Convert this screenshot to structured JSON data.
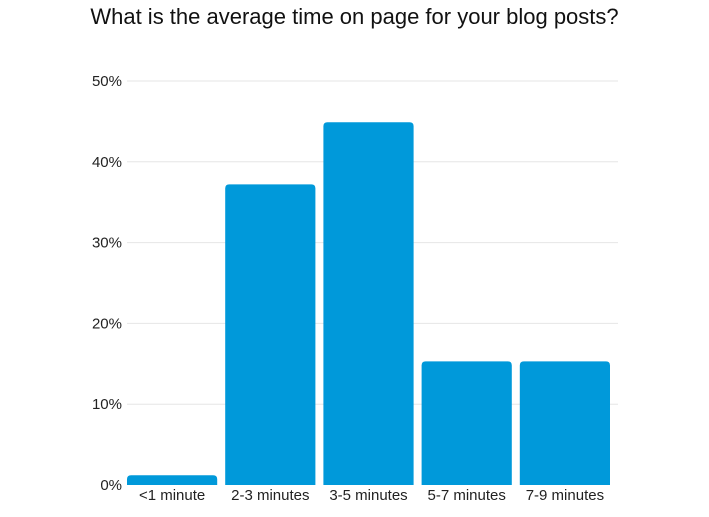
{
  "chart_data": {
    "type": "bar",
    "title": "What is the average time on page for your blog posts?",
    "xlabel": "",
    "ylabel": "",
    "categories": [
      "<1 minute",
      "2-3 minutes",
      "3-5 minutes",
      "5-7 minutes",
      "7-9 minutes"
    ],
    "values": [
      1.2,
      37.2,
      44.9,
      15.3,
      15.3
    ],
    "ylim": [
      0,
      50
    ],
    "yticks": [
      0,
      10,
      20,
      30,
      40,
      50
    ],
    "ytick_labels": [
      "0%",
      "10%",
      "20%",
      "30%",
      "40%",
      "50%"
    ],
    "bar_color": "#0099da",
    "grid": true,
    "legend": "none"
  }
}
